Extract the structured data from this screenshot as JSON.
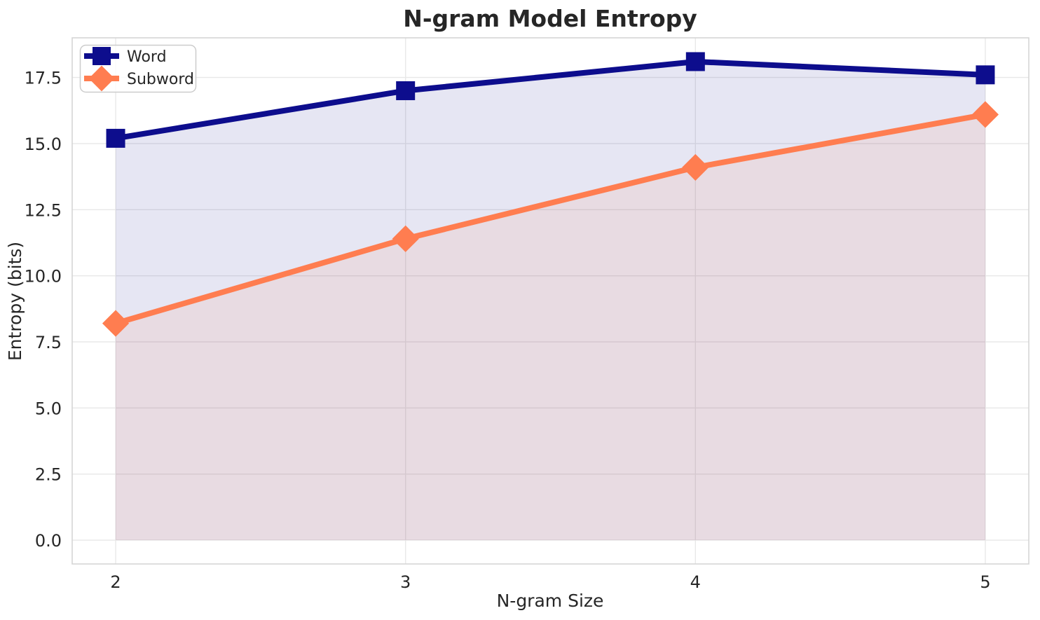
{
  "chart_data": {
    "type": "line",
    "title": "N-gram Model Entropy",
    "xlabel": "N-gram Size",
    "ylabel": "Entropy (bits)",
    "x": [
      2,
      3,
      4,
      5
    ],
    "xtick_labels": [
      "2",
      "3",
      "4",
      "5"
    ],
    "yticks": [
      0,
      2.5,
      5,
      7.5,
      10,
      12.5,
      15,
      17.5
    ],
    "ytick_labels": [
      "0.0",
      "2.5",
      "5.0",
      "7.5",
      "10.0",
      "12.5",
      "15.0",
      "17.5"
    ],
    "xlim": [
      1.85,
      5.15
    ],
    "ylim": [
      -0.9,
      19.0
    ],
    "grid": true,
    "area_baseline": 0,
    "legend": {
      "position": "upper-left",
      "entries": [
        "Word",
        "Subword"
      ]
    },
    "series": [
      {
        "name": "Word",
        "marker": "square",
        "color": "#0d0d8d",
        "fill_opacity": 0.1,
        "values": [
          15.2,
          17.0,
          18.1,
          17.6
        ]
      },
      {
        "name": "Subword",
        "marker": "diamond",
        "color": "#ff7d50",
        "fill_opacity": 0.1,
        "values": [
          8.2,
          11.4,
          14.1,
          16.1
        ]
      }
    ]
  },
  "colors": {
    "text": "#262626",
    "grid": "#e8e8e8",
    "spine": "#d5d5d5",
    "legend_border": "#cccccc",
    "legend_bg": "#ffffff",
    "plot_bg": "#ffffff"
  }
}
